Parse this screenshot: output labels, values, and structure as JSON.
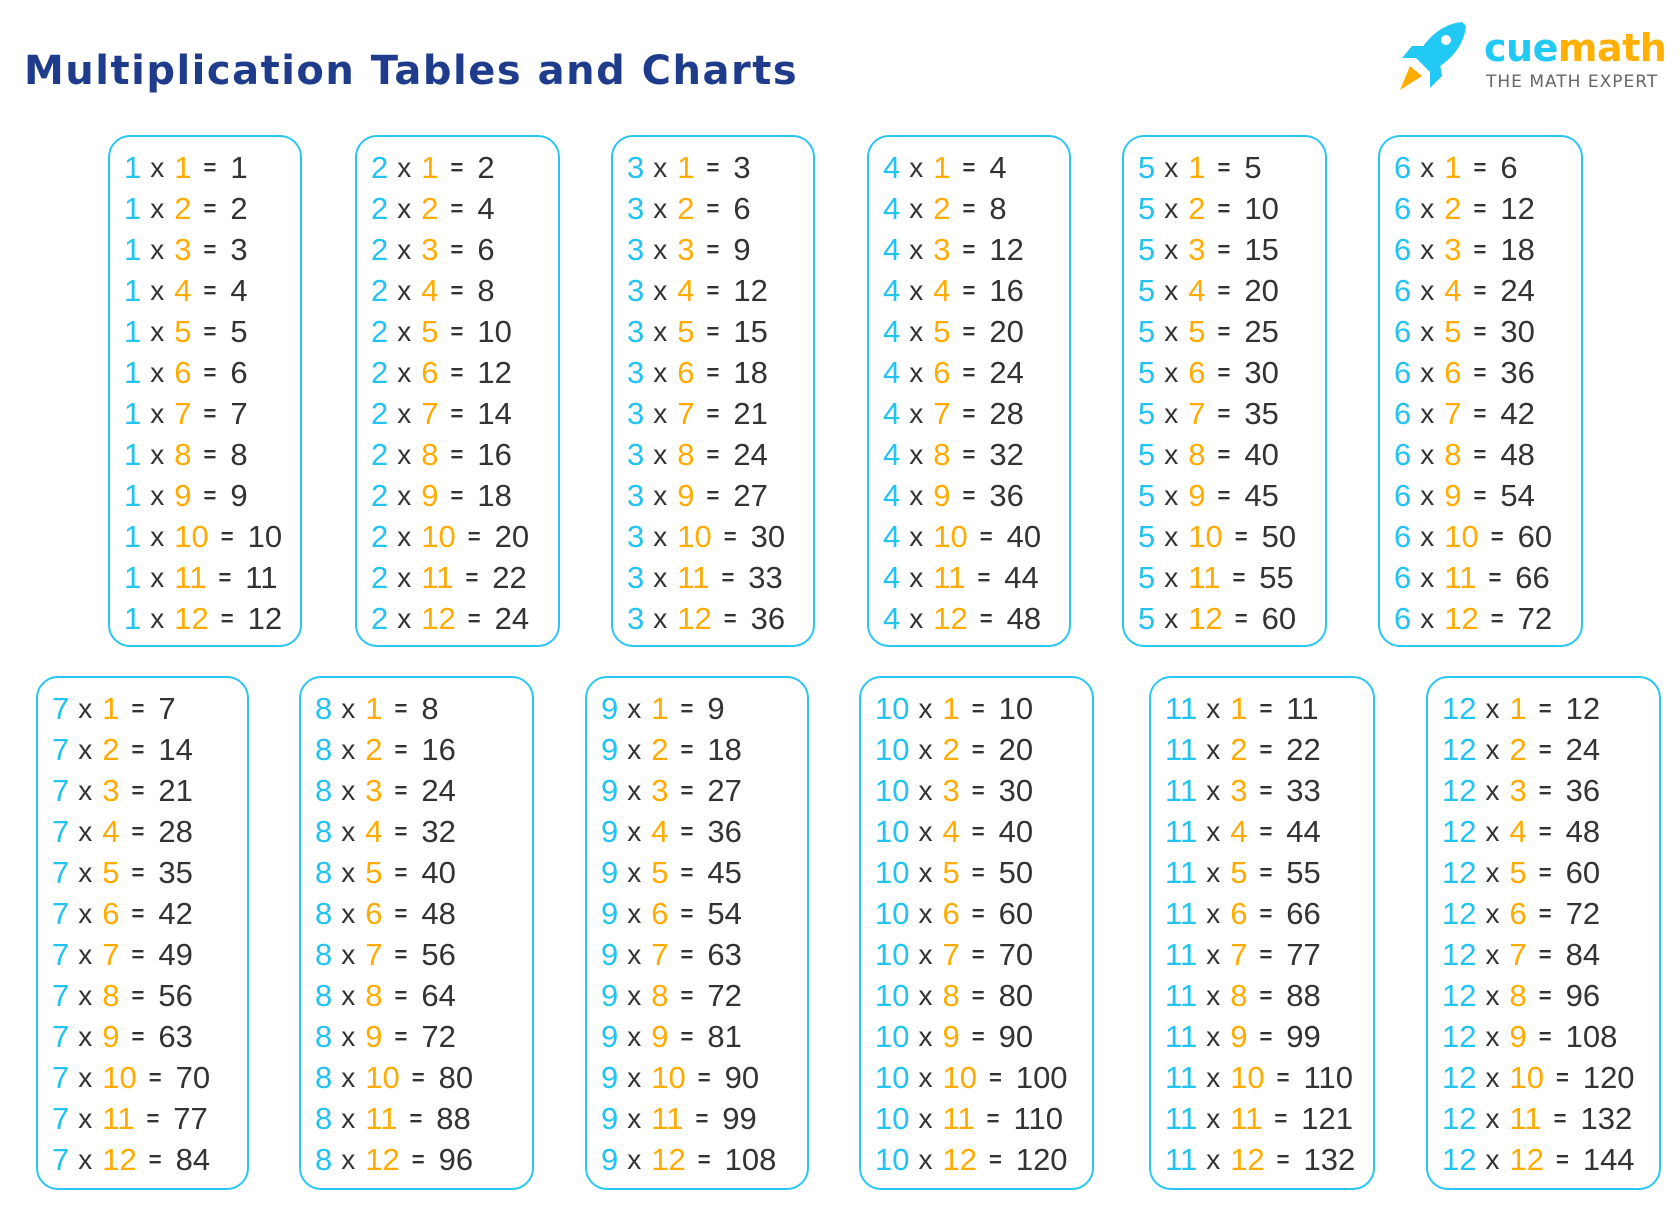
{
  "title": "Multiplication Tables and Charts",
  "logo": {
    "brand_part1": "cue",
    "brand_part2": "math",
    "tagline": "THE MATH EXPERT",
    "icon": "rocket-icon"
  },
  "colors": {
    "title": "#1f3c8c",
    "border": "#29c6f2",
    "multiplicand": "#22c3f0",
    "multiplier": "#ffab00",
    "text": "#333333"
  },
  "operators": {
    "times": "x",
    "equals": "="
  },
  "tables": [
    1,
    2,
    3,
    4,
    5,
    6,
    7,
    8,
    9,
    10,
    11,
    12
  ],
  "multipliers": [
    1,
    2,
    3,
    4,
    5,
    6,
    7,
    8,
    9,
    10,
    11,
    12
  ],
  "products": {
    "1": [
      1,
      2,
      3,
      4,
      5,
      6,
      7,
      8,
      9,
      10,
      11,
      12
    ],
    "2": [
      2,
      4,
      6,
      8,
      10,
      12,
      14,
      16,
      18,
      20,
      22,
      24
    ],
    "3": [
      3,
      6,
      9,
      12,
      15,
      18,
      21,
      24,
      27,
      30,
      33,
      36
    ],
    "4": [
      4,
      8,
      12,
      16,
      20,
      24,
      28,
      32,
      36,
      40,
      44,
      48
    ],
    "5": [
      5,
      10,
      15,
      20,
      25,
      30,
      35,
      40,
      45,
      50,
      55,
      60
    ],
    "6": [
      6,
      12,
      18,
      24,
      30,
      36,
      42,
      48,
      54,
      60,
      66,
      72
    ],
    "7": [
      7,
      14,
      21,
      28,
      35,
      42,
      49,
      56,
      63,
      70,
      77,
      84
    ],
    "8": [
      8,
      16,
      24,
      32,
      40,
      48,
      56,
      64,
      72,
      80,
      88,
      96
    ],
    "9": [
      9,
      18,
      27,
      36,
      45,
      54,
      63,
      72,
      81,
      90,
      99,
      108
    ],
    "10": [
      10,
      20,
      30,
      40,
      50,
      60,
      70,
      80,
      90,
      100,
      110,
      120
    ],
    "11": [
      11,
      22,
      33,
      44,
      55,
      66,
      77,
      88,
      99,
      110,
      121,
      132
    ],
    "12": [
      12,
      24,
      36,
      48,
      60,
      72,
      84,
      96,
      108,
      120,
      132,
      144
    ]
  }
}
